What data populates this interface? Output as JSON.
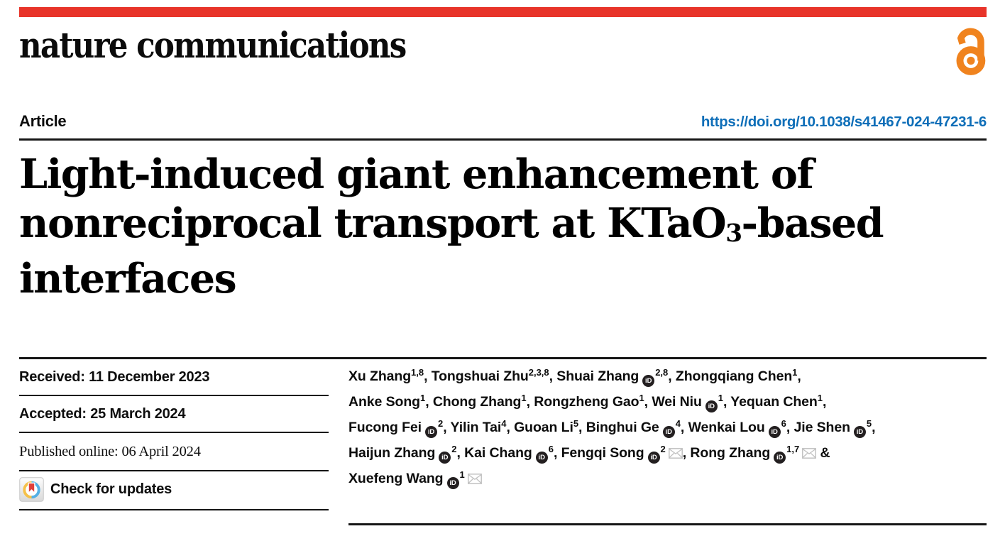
{
  "colors": {
    "brand_red": "#e8342a",
    "open_access_orange": "#f0831e",
    "link_blue": "#0e6eb8",
    "text_black": "#0d0d0d",
    "rule_dark": "#161616",
    "envelope_gray": "#c2c2c2",
    "orcid_black": "#231f20",
    "crossmark_blue": "#55b0e4",
    "crossmark_yellow": "#f5c14a",
    "crossmark_red": "#e0403a"
  },
  "icons": {
    "orcid_text": "iD",
    "open_access": "open-padlock",
    "email": "envelope",
    "check_updates": "crossmark-badge"
  },
  "masthead": {
    "journal": "nature communications"
  },
  "article": {
    "kicker": "Article",
    "doi": "https://doi.org/10.1038/s41467-024-47231-6",
    "title_lines": [
      [
        {
          "t": "Light-induced giant enhancement of"
        }
      ],
      [
        {
          "t": "nonreciprocal transport at KTaO"
        },
        {
          "t": "3",
          "sub": true
        },
        {
          "t": "-based"
        }
      ],
      [
        {
          "t": "interfaces"
        }
      ]
    ]
  },
  "timeline": {
    "received_label": "Received:",
    "received_value": "11 December 2023",
    "accepted_label": "Accepted:",
    "accepted_value": "25 March 2024",
    "published_label": "Published online:",
    "published_value": "06 April 2024",
    "check_for_updates": "Check for updates"
  },
  "authors": {
    "lines": [
      [
        {
          "name": "Xu Zhang",
          "sup": "1,8",
          "sep": ", "
        },
        {
          "name": "Tongshuai Zhu",
          "sup": "2,3,8",
          "sep": ", "
        },
        {
          "name": "Shuai Zhang",
          "orcid": true,
          "sup": "2,8",
          "sep": ", "
        },
        {
          "name": "Zhongqiang Chen",
          "sup": "1",
          "sep": ","
        }
      ],
      [
        {
          "name": "Anke Song",
          "sup": "1",
          "sep": ", "
        },
        {
          "name": "Chong Zhang",
          "sup": "1",
          "sep": ", "
        },
        {
          "name": "Rongzheng Gao",
          "sup": "1",
          "sep": ", "
        },
        {
          "name": "Wei Niu",
          "orcid": true,
          "sup": "1",
          "sep": ", "
        },
        {
          "name": "Yequan Chen",
          "sup": "1",
          "sep": ","
        }
      ],
      [
        {
          "name": "Fucong Fei",
          "orcid": true,
          "sup": "2",
          "sep": ", "
        },
        {
          "name": "Yilin Tai",
          "sup": "4",
          "sep": ", "
        },
        {
          "name": "Guoan Li",
          "sup": "5",
          "sep": ", "
        },
        {
          "name": "Binghui Ge",
          "orcid": true,
          "sup": "4",
          "sep": ", "
        },
        {
          "name": "Wenkai Lou",
          "orcid": true,
          "sup": "6",
          "sep": ", "
        },
        {
          "name": "Jie Shen",
          "orcid": true,
          "sup": "5",
          "sep": ","
        }
      ],
      [
        {
          "name": "Haijun Zhang",
          "orcid": true,
          "sup": "2",
          "sep": ", "
        },
        {
          "name": "Kai Chang",
          "orcid": true,
          "sup": "6",
          "sep": ", "
        },
        {
          "name": "Fengqi Song",
          "orcid": true,
          "sup": "2",
          "email": true,
          "sep": ", "
        },
        {
          "name": "Rong Zhang",
          "orcid": true,
          "sup": "1,7",
          "email": true,
          "sep": " &"
        }
      ],
      [
        {
          "name": "Xuefeng Wang",
          "orcid": true,
          "sup": "1",
          "email": true,
          "sep": ""
        }
      ]
    ]
  }
}
